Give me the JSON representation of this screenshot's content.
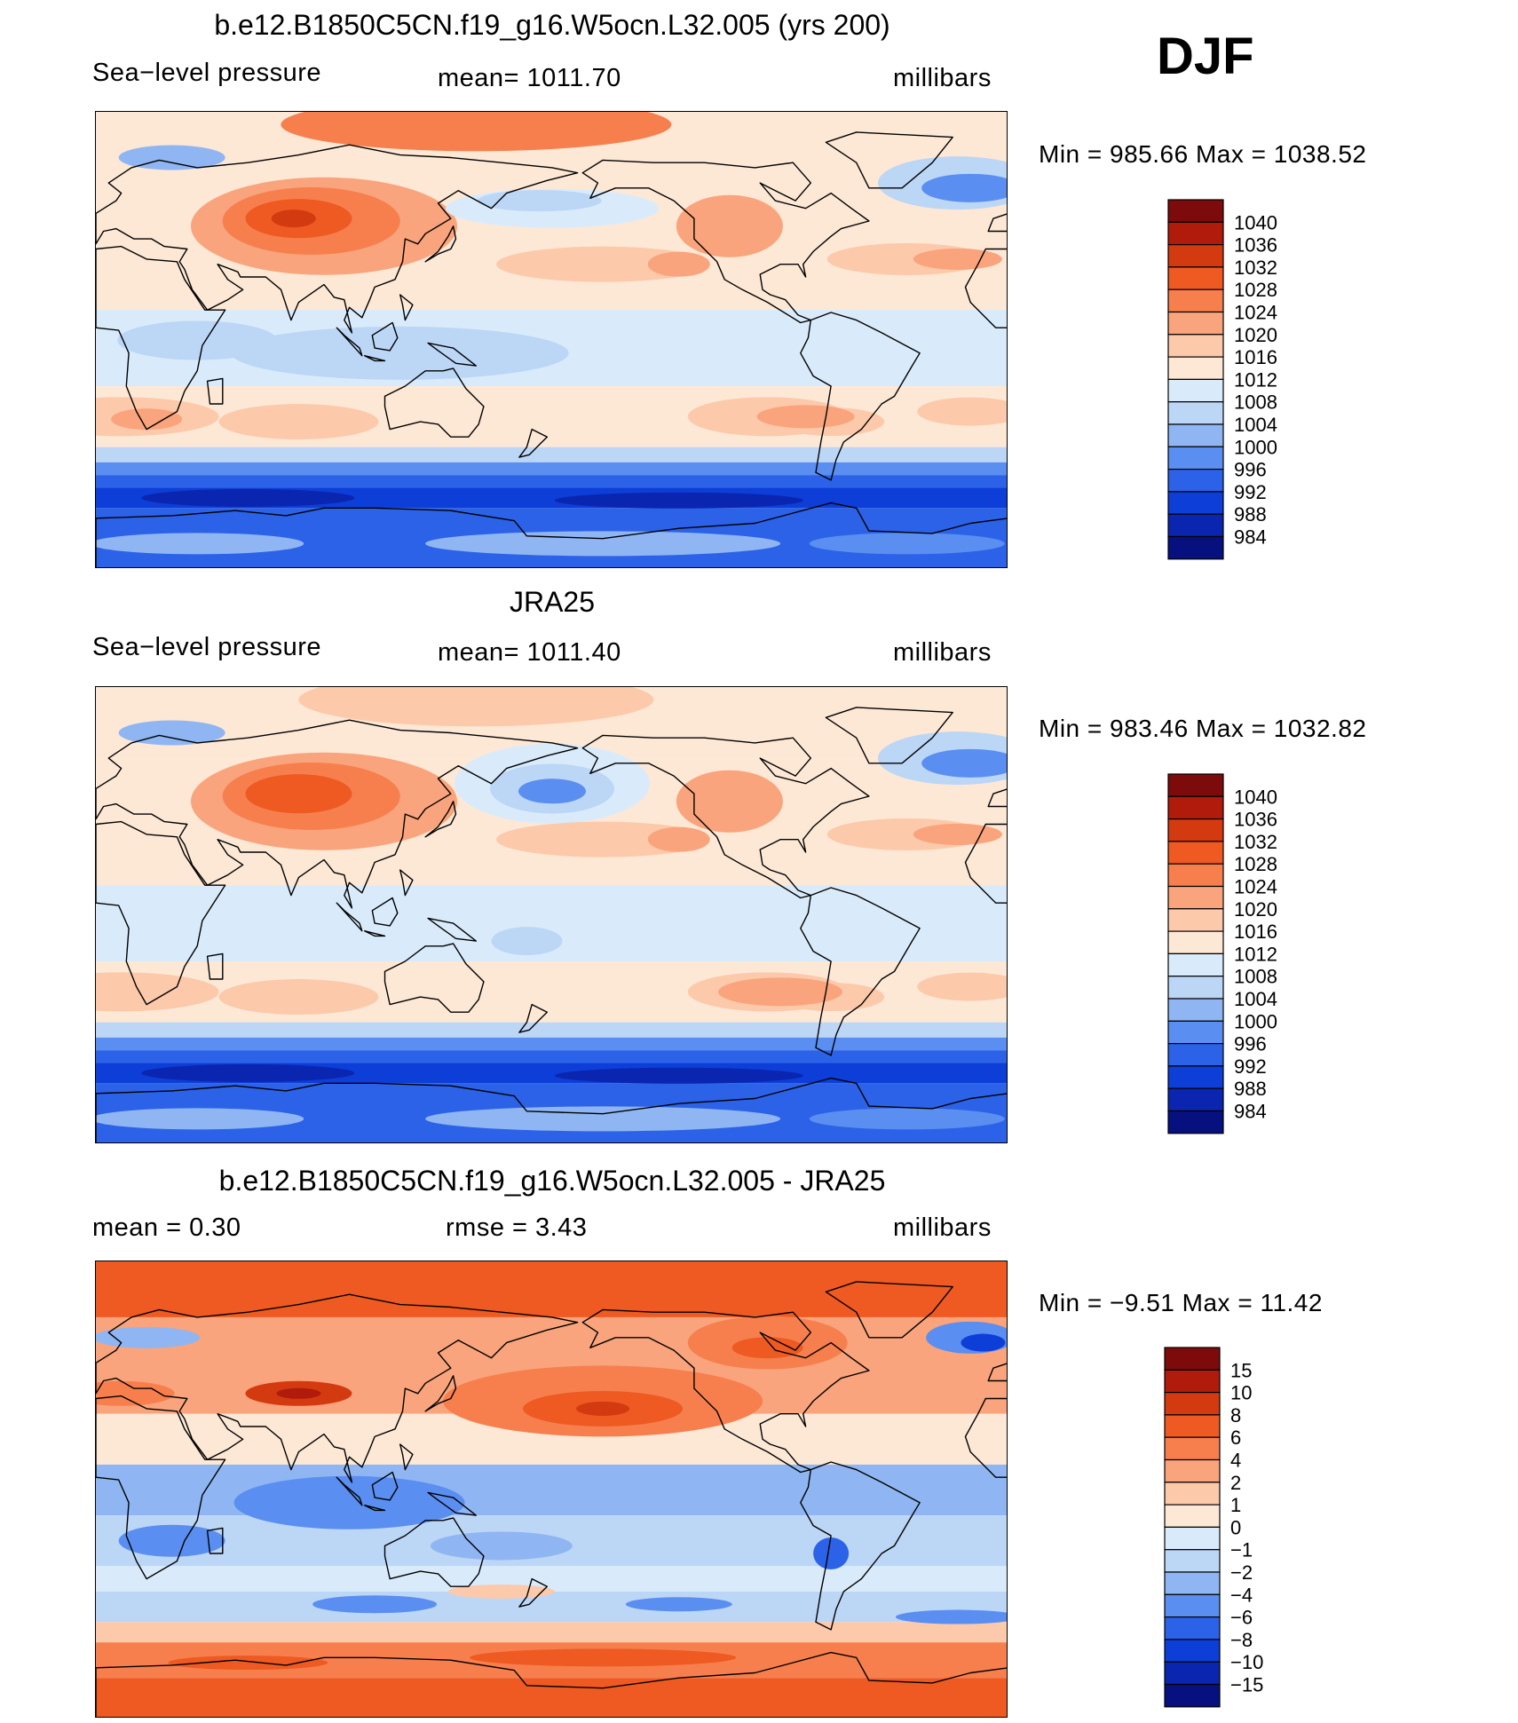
{
  "season": "DJF",
  "panels": [
    {
      "title": "b.e12.B1850C5CN.f19_g16.W5ocn.L32.005 (yrs 200)",
      "left_label": "Sea−level pressure",
      "center_label": "mean=  1011.70",
      "units": "millibars",
      "minmax": "Min  =  985.66  Max  =  1038.52",
      "variant": "model",
      "levels": [
        "1040",
        "1036",
        "1032",
        "1028",
        "1024",
        "1020",
        "1016",
        "1012",
        "1008",
        "1004",
        "1000",
        "996",
        "992",
        "988",
        "984"
      ]
    },
    {
      "title": "JRA25",
      "left_label": "Sea−level pressure",
      "center_label": "mean=  1011.40",
      "units": "millibars",
      "minmax": "Min  =  983.46  Max  =  1032.82",
      "variant": "obs",
      "levels": [
        "1040",
        "1036",
        "1032",
        "1028",
        "1024",
        "1020",
        "1016",
        "1012",
        "1008",
        "1004",
        "1000",
        "996",
        "992",
        "988",
        "984"
      ]
    },
    {
      "title": "b.e12.B1850C5CN.f19_g16.W5ocn.L32.005 - JRA25",
      "left_label": "mean  =     0.30",
      "center_label": "rmse  =     3.43",
      "units": "millibars",
      "minmax": "Min  =   −9.51  Max  =    11.42",
      "variant": "diff",
      "levels": [
        "15",
        "10",
        "8",
        "6",
        "4",
        "2",
        "1",
        "0",
        "−1",
        "−2",
        "−4",
        "−6",
        "−8",
        "−10",
        "−15"
      ]
    }
  ],
  "colors": {
    "colorbar": [
      "#7d0b0b",
      "#b01b0b",
      "#d43a10",
      "#ee5a22",
      "#f77f4e",
      "#f9a47c",
      "#fcc9ab",
      "#fde8d6",
      "#d9ebfb",
      "#bcd6f6",
      "#8fb6f2",
      "#5a8ef0",
      "#2c62e8",
      "#0d3ed8",
      "#0a26b0",
      "#06117f"
    ]
  }
}
